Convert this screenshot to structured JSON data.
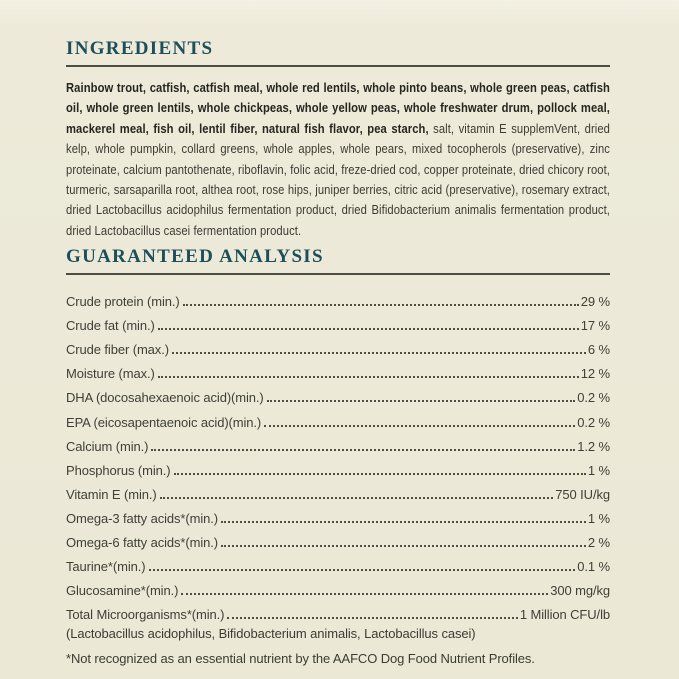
{
  "colors": {
    "background": "#ece9d8",
    "heading": "#1d4e59",
    "rule": "#4c4d43",
    "text_bold": "#26261f",
    "text_regular": "#3b3b31"
  },
  "ingredients": {
    "heading": "INGREDIENTS",
    "bold_text": "Rainbow trout, catfish, catfish meal, whole red lentils, whole pinto beans, whole green peas, catfish oil, whole green lentils, whole chickpeas, whole yellow peas, whole freshwater drum, pollock meal, mackerel meal, fish oil, lentil fiber, natural fish flavor, pea starch, ",
    "regular_text": "salt, vitamin E supplemVent, dried kelp, whole pumpkin, collard greens, whole apples, whole pears, mixed tocopherols (preservative), zinc proteinate, calcium pantothenate, riboflavin, folic acid, freze-dried cod, copper proteinate, dried chicory root, turmeric, sarsaparilla root, althea root, rose hips, juniper berries, citric acid (preservative), rosemary extract, dried Lactobacillus acidophilus fermentation product, dried Bifidobacterium animalis fermentation product, dried Lactobacillus casei fermentation product."
  },
  "guaranteed_analysis": {
    "heading": "GUARANTEED ANALYSIS",
    "rows": [
      {
        "label": "Crude protein (min.)",
        "value": "29 %"
      },
      {
        "label": "Crude fat (min.)",
        "value": "17 %"
      },
      {
        "label": "Crude fiber (max.)",
        "value": "6 %"
      },
      {
        "label": "Moisture (max.)",
        "value": "12 %"
      },
      {
        "label": "DHA (docosahexaenoic acid)(min.)",
        "value": "0.2 %"
      },
      {
        "label": "EPA (eicosapentaenoic acid)(min.)",
        "value": "0.2 %"
      },
      {
        "label": "Calcium (min.)",
        "value": "1.2 %"
      },
      {
        "label": "Phosphorus (min.)",
        "value": "1 %"
      },
      {
        "label": "Vitamin E (min.)",
        "value": "750 IU/kg"
      },
      {
        "label": "Omega-3 fatty acids*(min.)",
        "value": "1 %"
      },
      {
        "label": "Omega-6 fatty acids*(min.)",
        "value": "2 %"
      },
      {
        "label": "Taurine*(min.)",
        "value": "0.1 %"
      },
      {
        "label": "Glucosamine*(min.)",
        "value": "300 mg/kg"
      },
      {
        "label": "Total Microorganisms*(min.)",
        "value": "1 Million CFU/lb"
      }
    ],
    "footnotes": [
      "(Lactobacillus acidophilus, Bifidobacterium animalis, Lactobacillus casei)",
      "*Not recognized as an essential nutrient by the AAFCO Dog Food Nutrient Profiles."
    ]
  }
}
